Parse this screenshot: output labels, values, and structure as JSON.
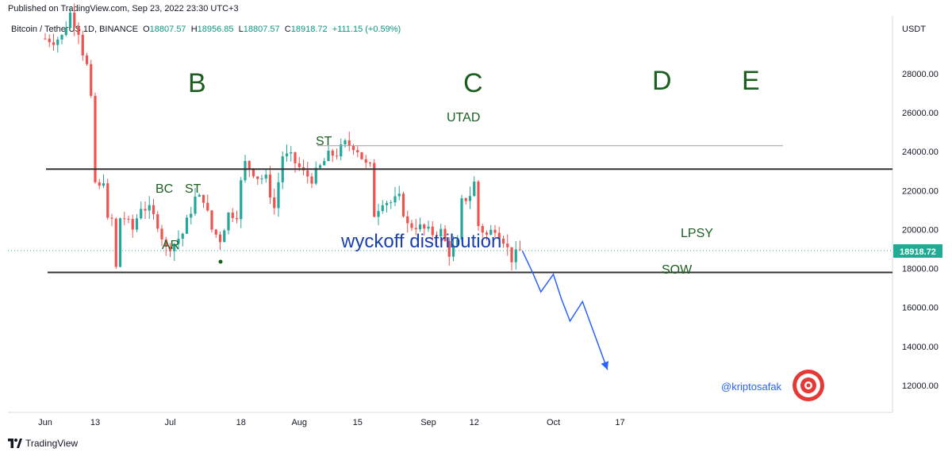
{
  "header": {
    "published": "Published on TradingView.com, Sep 23, 2022 23:30 UTC+3",
    "symbol": "Bitcoin / TetherUS",
    "symbol_suffix": "1D, BINANCE",
    "o_label": "O",
    "o_value": "18807.57",
    "h_label": "H",
    "h_value": "18956.85",
    "l_label": "L",
    "l_value": "18807.57",
    "c_label": "C",
    "c_value": "18918.72",
    "change": "+111.15 (+0.59%)"
  },
  "footer": {
    "brand": "TradingView"
  },
  "colors": {
    "up": "#26a69a",
    "down": "#ef5350",
    "annotation_green": "#1b5e20",
    "wyckoff_blue": "#1a3fae",
    "projection_blue": "#2962ff",
    "target_red": "#e53935",
    "price_tag": "#22ab94"
  },
  "chart_data": {
    "type": "candlestick",
    "currency_label": "USDT",
    "y_ticks": [
      "12000.00",
      "14000.00",
      "16000.00",
      "18000.00",
      "20000.00",
      "22000.00",
      "24000.00",
      "26000.00",
      "28000.00"
    ],
    "x_ticks": [
      "Jun",
      "13",
      "Jul",
      "18",
      "Aug",
      "15",
      "Sep",
      "12",
      "Oct",
      "17"
    ],
    "last_price": "18918.72",
    "close_path": [
      [
        "2022-06-01",
        29800
      ],
      [
        "2022-06-03",
        29700
      ],
      [
        "2022-06-05",
        29900
      ],
      [
        "2022-06-07",
        31100
      ],
      [
        "2022-06-09",
        30200
      ],
      [
        "2022-06-10",
        29100
      ],
      [
        "2022-06-11",
        28400
      ],
      [
        "2022-06-12",
        26600
      ],
      [
        "2022-06-13",
        22400
      ],
      [
        "2022-06-14",
        22100
      ],
      [
        "2022-06-15",
        22600
      ],
      [
        "2022-06-16",
        20400
      ],
      [
        "2022-06-17",
        20500
      ],
      [
        "2022-06-18",
        18000
      ],
      [
        "2022-06-19",
        20600
      ],
      [
        "2022-06-20",
        20600
      ],
      [
        "2022-06-22",
        20000
      ],
      [
        "2022-06-24",
        21200
      ],
      [
        "2022-06-26",
        21000
      ],
      [
        "2022-06-28",
        20300
      ],
      [
        "2022-06-30",
        19000
      ],
      [
        "2022-07-02",
        19300
      ],
      [
        "2022-07-04",
        19800
      ],
      [
        "2022-07-07",
        21600
      ],
      [
        "2022-07-09",
        21600
      ],
      [
        "2022-07-11",
        20000
      ],
      [
        "2022-07-13",
        19500
      ],
      [
        "2022-07-15",
        20800
      ],
      [
        "2022-07-17",
        20800
      ],
      [
        "2022-07-18",
        22400
      ],
      [
        "2022-07-19",
        23400
      ],
      [
        "2022-07-20",
        23200
      ],
      [
        "2022-07-22",
        22700
      ],
      [
        "2022-07-24",
        22600
      ],
      [
        "2022-07-26",
        21100
      ],
      [
        "2022-07-28",
        23800
      ],
      [
        "2022-07-30",
        23700
      ],
      [
        "2022-08-02",
        22900
      ],
      [
        "2022-08-04",
        22600
      ],
      [
        "2022-08-06",
        23200
      ],
      [
        "2022-08-08",
        23800
      ],
      [
        "2022-08-10",
        23900
      ],
      [
        "2022-08-12",
        24400
      ],
      [
        "2022-08-14",
        24300
      ],
      [
        "2022-08-15",
        24100
      ],
      [
        "2022-08-17",
        23300
      ],
      [
        "2022-08-18",
        23200
      ],
      [
        "2022-08-19",
        20800
      ],
      [
        "2022-08-21",
        21500
      ],
      [
        "2022-08-23",
        21400
      ],
      [
        "2022-08-25",
        21600
      ],
      [
        "2022-08-27",
        20200
      ],
      [
        "2022-08-29",
        20200
      ],
      [
        "2022-08-31",
        20000
      ],
      [
        "2022-09-02",
        19800
      ],
      [
        "2022-09-04",
        19900
      ],
      [
        "2022-09-06",
        18800
      ],
      [
        "2022-09-08",
        19300
      ],
      [
        "2022-09-09",
        21400
      ],
      [
        "2022-09-11",
        21800
      ],
      [
        "2022-09-12",
        22400
      ],
      [
        "2022-09-13",
        20200
      ],
      [
        "2022-09-15",
        19700
      ],
      [
        "2022-09-17",
        20100
      ],
      [
        "2022-09-19",
        19500
      ],
      [
        "2022-09-21",
        18500
      ],
      [
        "2022-09-23",
        18919
      ]
    ],
    "resistance_top": 24300,
    "range_high": 23100,
    "range_low": 17800,
    "projection": [
      [
        "2022-09-23",
        18900
      ],
      [
        "2022-09-26",
        17800
      ],
      [
        "2022-09-28",
        16800
      ],
      [
        "2022-10-01",
        17700
      ],
      [
        "2022-10-03",
        16400
      ],
      [
        "2022-10-05",
        15300
      ],
      [
        "2022-10-08",
        16300
      ],
      [
        "2022-10-14",
        12800
      ]
    ],
    "annotations": {
      "phase_b": "B",
      "phase_c": "C",
      "phase_d": "D",
      "phase_e": "E",
      "bc": "BC",
      "st1": "ST",
      "ar": "AR",
      "st2": "ST",
      "utad": "UTAD",
      "lpsy": "LPSY",
      "sow": "SOW",
      "wyckoff": "wyckoff distribution",
      "handle": "@kriptosafak"
    }
  }
}
